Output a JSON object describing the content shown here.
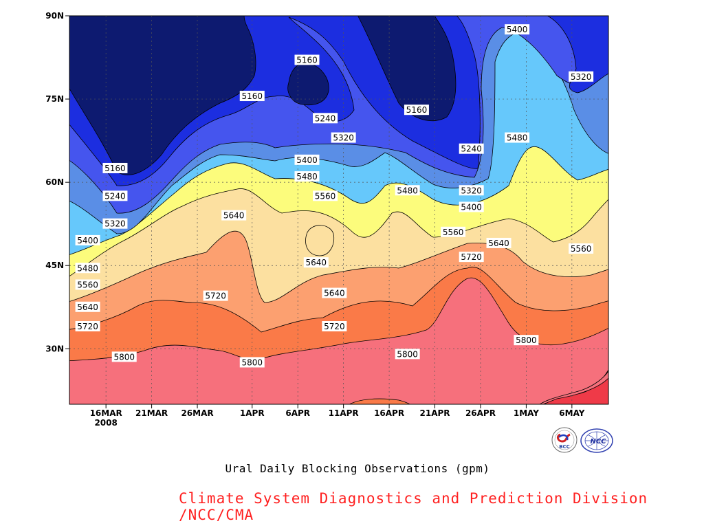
{
  "caption": "Ural Daily Blocking Observations (gpm)",
  "credit": "Climate System Diagnostics and Prediction Division /NCC/CMA",
  "logos": {
    "left": "BCC",
    "right": "NCC"
  },
  "chart_data": {
    "type": "heatmap",
    "title": "Ural Daily Blocking Observations (gpm)",
    "xlabel": "",
    "ylabel": "",
    "x_ticks": [
      "16MAR\n2008",
      "21MAR",
      "26MAR",
      "1APR",
      "6APR",
      "11APR",
      "16APR",
      "21APR",
      "26APR",
      "1MAY",
      "6MAY"
    ],
    "y_ticks": [
      "30N",
      "45N",
      "60N",
      "75N",
      "90N"
    ],
    "y_tick_values": [
      30,
      45,
      60,
      75,
      90
    ],
    "ylim": [
      20,
      90
    ],
    "xlim": [
      "2008-03-12",
      "2008-05-10"
    ],
    "grid": true,
    "contour_levels": [
      5160,
      5240,
      5320,
      5400,
      5480,
      5560,
      5640,
      5720,
      5800
    ],
    "level_colors": [
      "#0d1a70",
      "#1c2ee0",
      "#4555ee",
      "#5a8ee6",
      "#66c8fb",
      "#fcfc7c",
      "#fce0a0",
      "#fca070",
      "#fa7a48",
      "#f6707c",
      "#ef3a48"
    ],
    "contour_labels": [
      {
        "value": 5160,
        "date": "2008-03-17",
        "lat": 62.5
      },
      {
        "value": 5240,
        "date": "2008-03-17",
        "lat": 57.5
      },
      {
        "value": 5320,
        "date": "2008-03-17",
        "lat": 52.5
      },
      {
        "value": 5400,
        "date": "2008-03-14",
        "lat": 49.5
      },
      {
        "value": 5480,
        "date": "2008-03-14",
        "lat": 44.5
      },
      {
        "value": 5560,
        "date": "2008-03-14",
        "lat": 41.5
      },
      {
        "value": 5640,
        "date": "2008-03-14",
        "lat": 37.5
      },
      {
        "value": 5720,
        "date": "2008-03-14",
        "lat": 34.0
      },
      {
        "value": 5800,
        "date": "2008-03-18",
        "lat": 28.5
      },
      {
        "value": 5640,
        "date": "2008-03-30",
        "lat": 54.0
      },
      {
        "value": 5720,
        "date": "2008-03-28",
        "lat": 39.5
      },
      {
        "value": 5800,
        "date": "2008-04-01",
        "lat": 27.5
      },
      {
        "value": 5160,
        "date": "2008-04-01",
        "lat": 75.5
      },
      {
        "value": 5160,
        "date": "2008-04-07",
        "lat": 82.0
      },
      {
        "value": 5240,
        "date": "2008-04-09",
        "lat": 71.5
      },
      {
        "value": 5320,
        "date": "2008-04-11",
        "lat": 68.0
      },
      {
        "value": 5400,
        "date": "2008-04-07",
        "lat": 64.0
      },
      {
        "value": 5480,
        "date": "2008-04-07",
        "lat": 61.0
      },
      {
        "value": 5560,
        "date": "2008-04-09",
        "lat": 57.5
      },
      {
        "value": 5640,
        "date": "2008-04-08",
        "lat": 45.5
      },
      {
        "value": 5640,
        "date": "2008-04-10",
        "lat": 40.0
      },
      {
        "value": 5720,
        "date": "2008-04-10",
        "lat": 34.0
      },
      {
        "value": 5160,
        "date": "2008-04-19",
        "lat": 73.0
      },
      {
        "value": 5480,
        "date": "2008-04-18",
        "lat": 58.5
      },
      {
        "value": 5800,
        "date": "2008-04-18",
        "lat": 29.0
      },
      {
        "value": 5560,
        "date": "2008-04-23",
        "lat": 51.0
      },
      {
        "value": 5240,
        "date": "2008-04-25",
        "lat": 66.0
      },
      {
        "value": 5320,
        "date": "2008-04-25",
        "lat": 58.5
      },
      {
        "value": 5400,
        "date": "2008-04-25",
        "lat": 55.5
      },
      {
        "value": 5720,
        "date": "2008-04-25",
        "lat": 46.5
      },
      {
        "value": 5640,
        "date": "2008-04-28",
        "lat": 49.0
      },
      {
        "value": 5400,
        "date": "2008-04-30",
        "lat": 87.5
      },
      {
        "value": 5480,
        "date": "2008-04-30",
        "lat": 68.0
      },
      {
        "value": 5800,
        "date": "2008-05-01",
        "lat": 31.5
      },
      {
        "value": 5320,
        "date": "2008-05-07",
        "lat": 79.0
      },
      {
        "value": 5560,
        "date": "2008-05-07",
        "lat": 48.0
      }
    ]
  }
}
